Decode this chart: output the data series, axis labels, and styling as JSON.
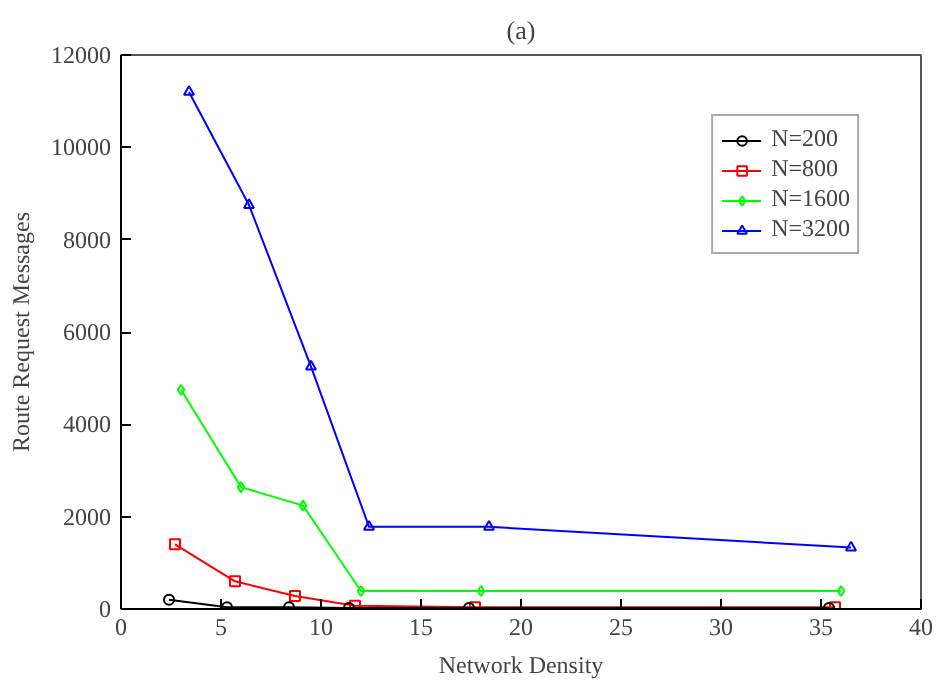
{
  "chart_data": {
    "type": "line",
    "title": "(a)",
    "xlabel": "Network Density",
    "ylabel": "Route Request Messages",
    "xlim": [
      0,
      40
    ],
    "ylim": [
      0,
      12000
    ],
    "xticks": [
      0,
      5,
      10,
      15,
      20,
      25,
      30,
      35,
      40
    ],
    "yticks": [
      0,
      2000,
      4000,
      6000,
      8000,
      10000,
      12000
    ],
    "grid": false,
    "legend": "top right",
    "series": [
      {
        "name": "N=200",
        "color": "#000000",
        "marker": "circle",
        "x": [
          2.4,
          5.3,
          8.4,
          11.4,
          17.4,
          35.4
        ],
        "values": [
          200,
          40,
          40,
          20,
          20,
          20
        ]
      },
      {
        "name": "N=800",
        "color": "#ff0000",
        "marker": "square",
        "x": [
          2.7,
          5.7,
          8.7,
          11.7,
          17.7,
          35.7
        ],
        "values": [
          1400,
          600,
          280,
          70,
          40,
          40
        ]
      },
      {
        "name": "N=1600",
        "color": "#00ff00",
        "marker": "diamond",
        "x": [
          3.0,
          6.0,
          9.1,
          12.0,
          18.0,
          36.0
        ],
        "values": [
          4750,
          2640,
          2240,
          390,
          390,
          390
        ]
      },
      {
        "name": "N=3200",
        "color": "#0000ff",
        "marker": "triangle",
        "x": [
          3.4,
          6.4,
          9.5,
          12.4,
          18.4,
          36.5
        ],
        "values": [
          11200,
          8750,
          5250,
          1780,
          1780,
          1330
        ]
      }
    ]
  }
}
